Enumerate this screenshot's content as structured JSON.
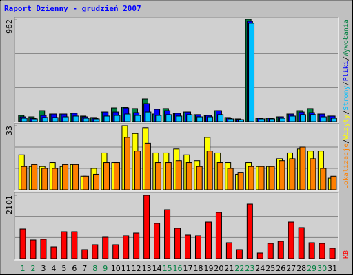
{
  "title": "Raport Dzienny -  grudzień 2007",
  "legend_separator": "/",
  "categories": [
    "1",
    "2",
    "3",
    "4",
    "5",
    "6",
    "7",
    "8",
    "9",
    "10",
    "11",
    "12",
    "13",
    "14",
    "15",
    "16",
    "17",
    "18",
    "19",
    "20",
    "21",
    "22",
    "23",
    "24",
    "25",
    "26",
    "27",
    "28",
    "29",
    "30",
    "31"
  ],
  "category_colors": [
    "#008040",
    "#008040",
    "#000000",
    "#000000",
    "#000000",
    "#000000",
    "#000000",
    "#008040",
    "#008040",
    "#000000",
    "#000000",
    "#000000",
    "#000000",
    "#000000",
    "#008040",
    "#008040",
    "#000000",
    "#000000",
    "#000000",
    "#000000",
    "#000000",
    "#008040",
    "#008040",
    "#000000",
    "#000000",
    "#000000",
    "#000000",
    "#000000",
    "#008040",
    "#008040",
    "#000000"
  ],
  "chart_data": [
    {
      "type": "bar",
      "ylim": [
        0,
        962
      ],
      "yticks": [
        962
      ],
      "series": [
        {
          "name": "Wywołania",
          "color": "#008040",
          "values": [
            58,
            45,
            103,
            71,
            71,
            78,
            52,
            39,
            90,
            129,
            136,
            123,
            213,
            71,
            123,
            78,
            90,
            65,
            58,
            103,
            39,
            26,
            962,
            32,
            32,
            45,
            71,
            103,
            123,
            71,
            52
          ]
        },
        {
          "name": "Pliki",
          "color": "#0000ff",
          "values": [
            45,
            32,
            58,
            71,
            71,
            78,
            45,
            32,
            90,
            90,
            129,
            84,
            168,
            116,
            103,
            78,
            90,
            65,
            58,
            103,
            32,
            19,
            943,
            32,
            32,
            45,
            71,
            90,
            84,
            71,
            52
          ]
        },
        {
          "name": "Strony",
          "color": "#00c0ff",
          "values": [
            32,
            26,
            39,
            39,
            45,
            52,
            32,
            26,
            52,
            58,
            71,
            58,
            90,
            58,
            65,
            52,
            65,
            45,
            45,
            65,
            26,
            19,
            924,
            26,
            26,
            32,
            52,
            65,
            65,
            45,
            32
          ]
        }
      ]
    },
    {
      "type": "bar",
      "ylim": [
        0,
        33
      ],
      "yticks": [
        33
      ],
      "series": [
        {
          "name": "Wizyty",
          "color": "#ffff00",
          "values": [
            18,
            12,
            12,
            14,
            12,
            13,
            7,
            11,
            19,
            14,
            33,
            29,
            32,
            19,
            19,
            21,
            18,
            15,
            27,
            19,
            14,
            8,
            14,
            12,
            12,
            16,
            19,
            21,
            20,
            20,
            6
          ]
        },
        {
          "name": "Lokalizacje",
          "color": "#ff8000",
          "values": [
            12,
            13,
            11,
            11,
            13,
            13,
            7,
            8,
            14,
            14,
            27,
            20,
            24,
            14,
            14,
            15,
            14,
            12,
            20,
            14,
            11,
            9,
            12,
            12,
            12,
            15,
            16,
            22,
            16,
            11,
            7
          ]
        }
      ]
    },
    {
      "type": "bar",
      "ylim": [
        0,
        2101
      ],
      "yticks": [
        2101
      ],
      "series": [
        {
          "name": "KB",
          "color": "#ff0000",
          "values": [
            982,
            617,
            640,
            388,
            890,
            890,
            297,
            457,
            708,
            457,
            754,
            845,
            2101,
            1165,
            1621,
            1005,
            777,
            754,
            1210,
            1530,
            525,
            297,
            1804,
            183,
            502,
            571,
            1210,
            1028,
            525,
            502,
            343
          ]
        }
      ]
    }
  ]
}
